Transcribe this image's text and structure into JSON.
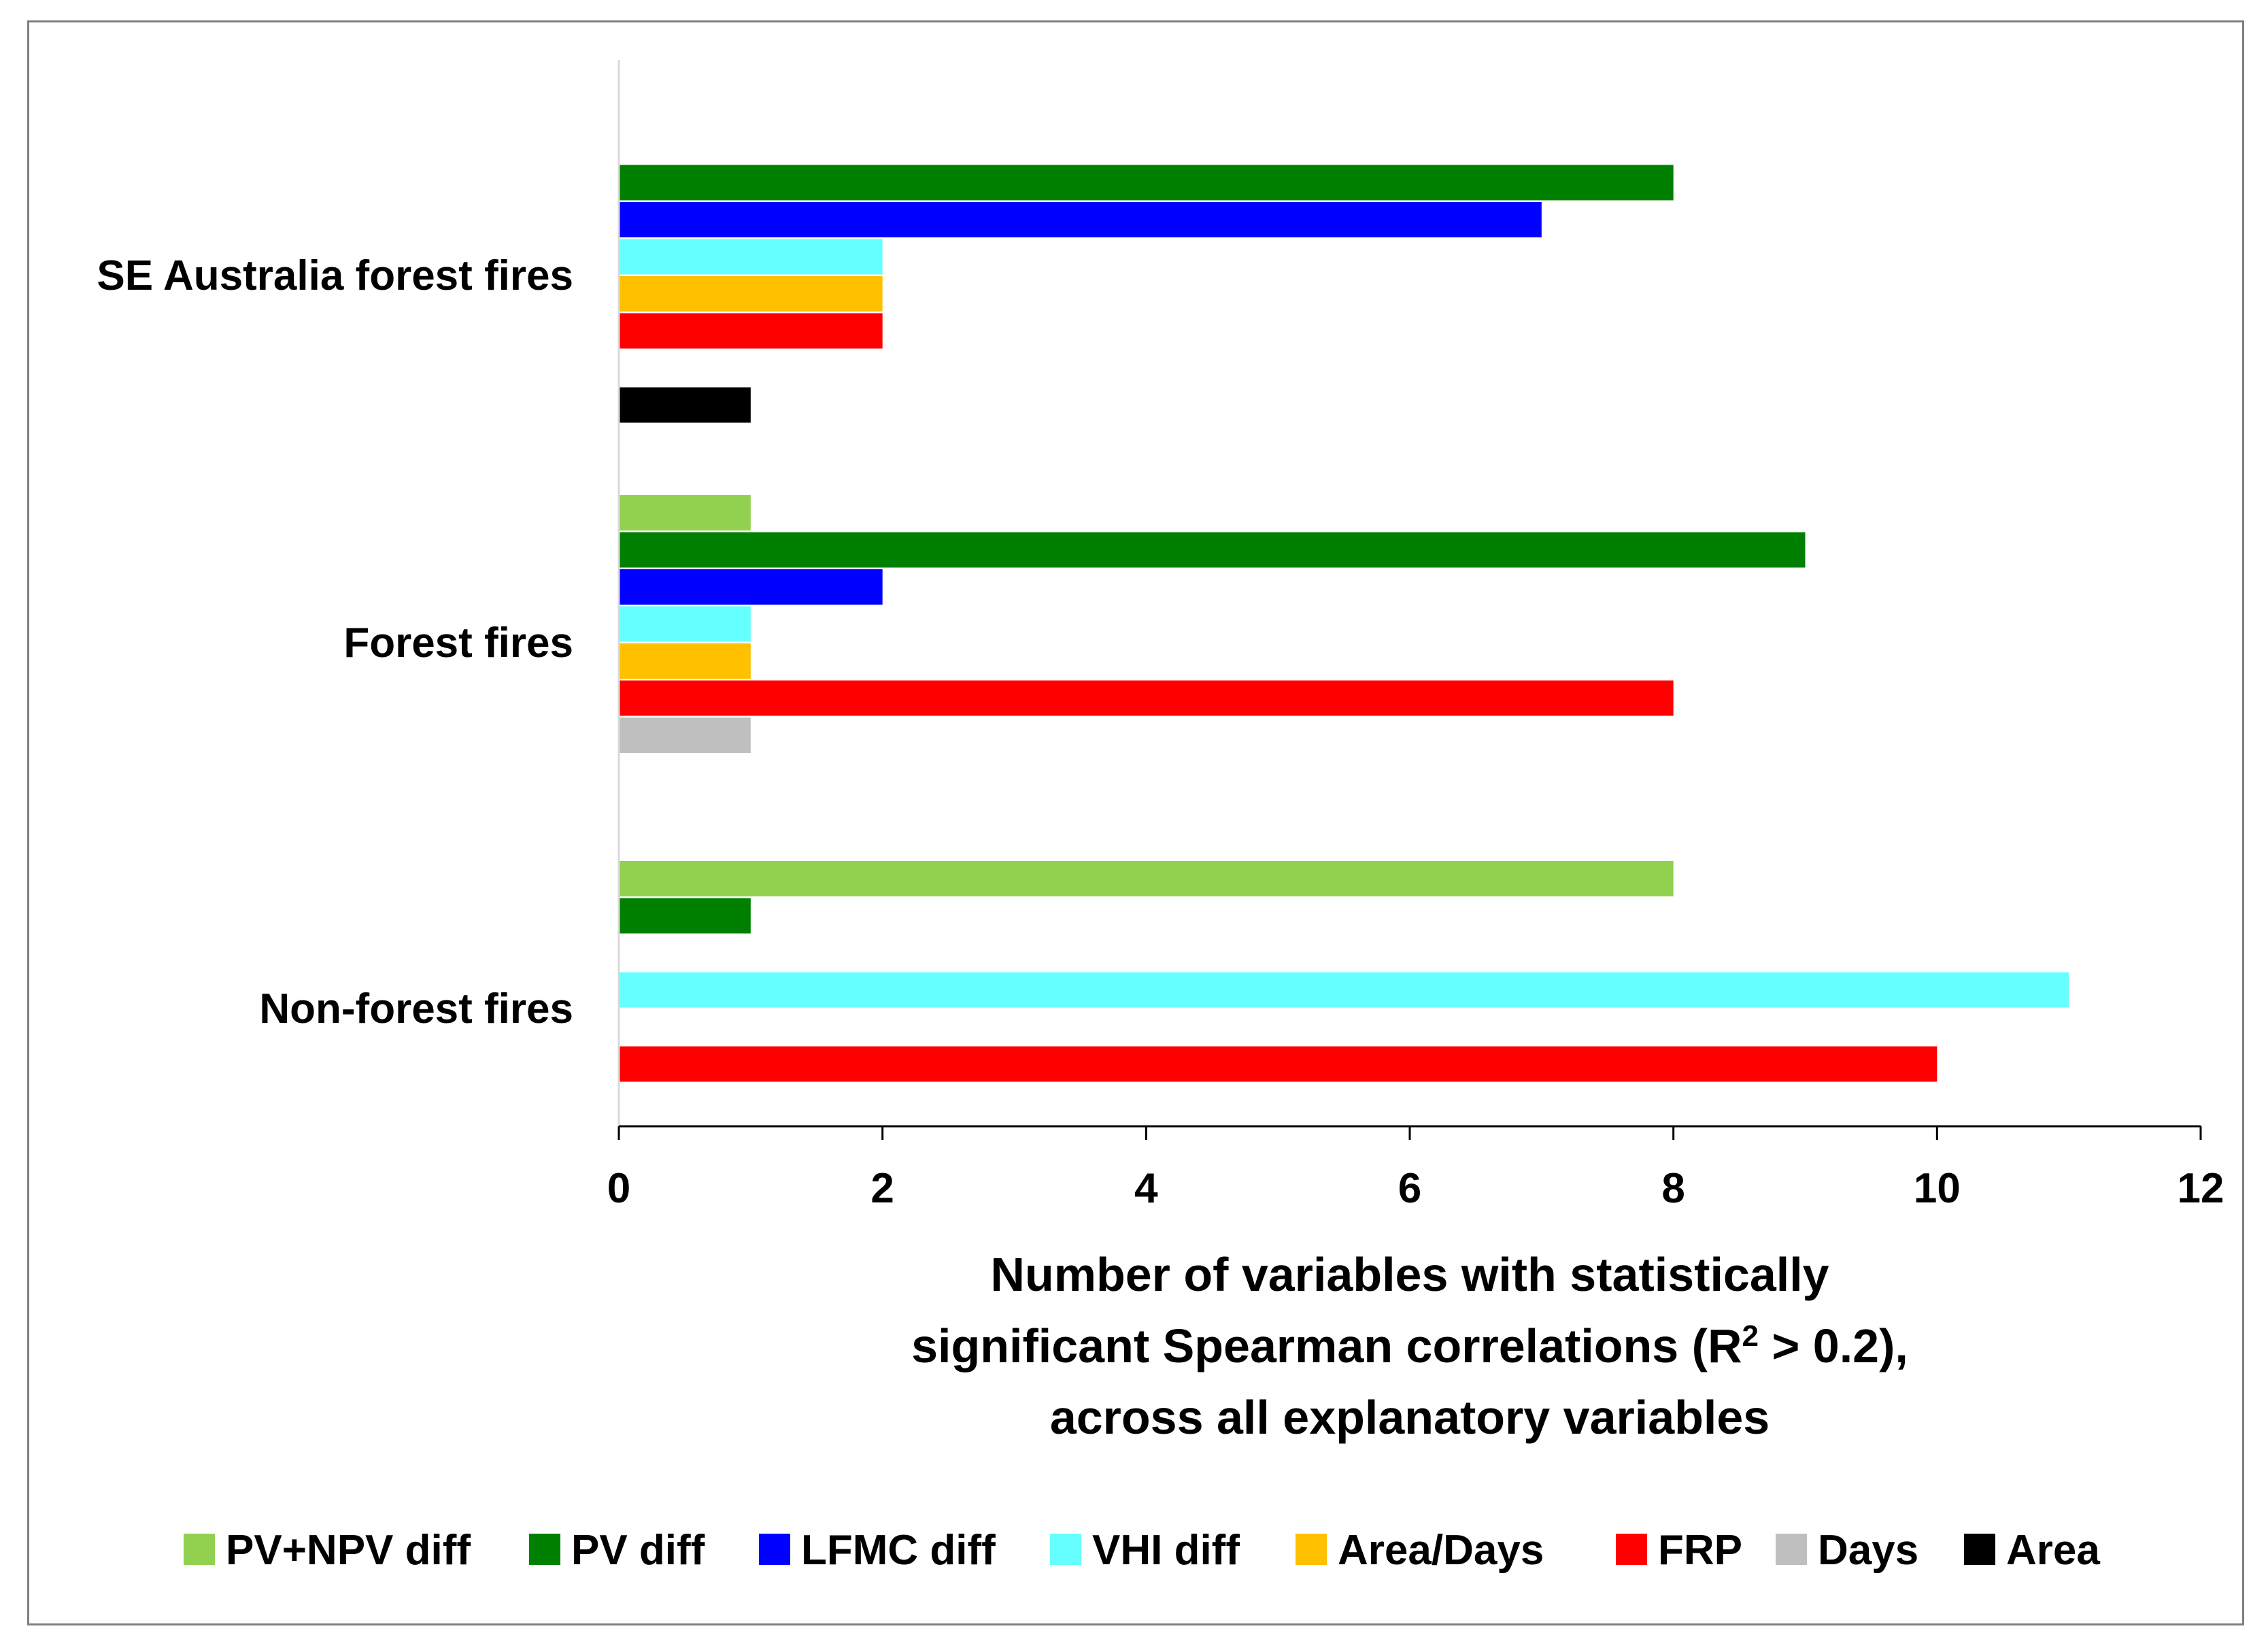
{
  "chart_data": {
    "type": "bar",
    "orientation": "horizontal",
    "title": "",
    "categories": [
      "SE Australia forest fires",
      "Forest fires",
      "Non-forest fires"
    ],
    "series": [
      {
        "name": "PV+NPV diff",
        "color": "#92D050",
        "values": [
          0,
          1,
          8
        ]
      },
      {
        "name": "PV diff",
        "color": "#008000",
        "values": [
          8,
          9,
          1
        ]
      },
      {
        "name": "LFMC diff",
        "color": "#0000FF",
        "values": [
          7,
          2,
          0
        ]
      },
      {
        "name": "VHI diff",
        "color": "#66FFFF",
        "values": [
          2,
          1,
          11
        ]
      },
      {
        "name": "Area/Days",
        "color": "#FFC000",
        "values": [
          2,
          1,
          0
        ]
      },
      {
        "name": "FRP",
        "color": "#FF0000",
        "values": [
          2,
          8,
          10
        ]
      },
      {
        "name": "Days",
        "color": "#BFBFBF",
        "values": [
          0,
          1,
          0
        ]
      },
      {
        "name": "Area",
        "color": "#000000",
        "values": [
          1,
          0,
          0
        ]
      }
    ],
    "xlim": [
      0,
      12
    ],
    "xticks": [
      "0",
      "2",
      "4",
      "6",
      "8",
      "10",
      "12"
    ],
    "xlabel_lines": [
      "Number of  variables with statistically",
      "significant Spearman correlations (R",
      "across all explanatory variables"
    ],
    "xlabel_superscript": "2",
    "xlabel_suffix": " > 0.2),",
    "ylabel": "",
    "grid": false,
    "legend_position": "bottom"
  }
}
